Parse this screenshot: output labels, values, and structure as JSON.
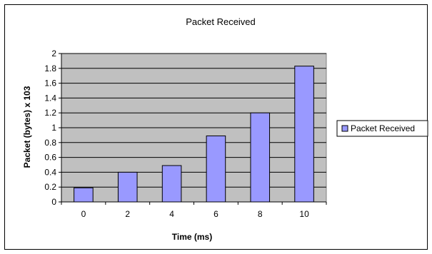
{
  "chart_data": {
    "type": "bar",
    "title": "Packet Received",
    "xlabel": "Time (ms)",
    "ylabel": "Packet (bytes) x 103",
    "categories": [
      "0",
      "2",
      "4",
      "6",
      "8",
      "10"
    ],
    "series": [
      {
        "name": "Packet Received",
        "values": [
          0.19,
          0.4,
          0.49,
          0.89,
          1.2,
          1.83
        ]
      }
    ],
    "ylim": [
      0,
      2
    ],
    "yticks": [
      "0",
      "0.2",
      "0.4",
      "0.6",
      "0.8",
      "1",
      "1.2",
      "1.4",
      "1.6",
      "1.8",
      "2"
    ],
    "grid": true,
    "legend_position": "right",
    "colors": {
      "bar_fill": "#9999ff",
      "plot_background": "#c0c0c0",
      "gridline": "#000000"
    }
  }
}
